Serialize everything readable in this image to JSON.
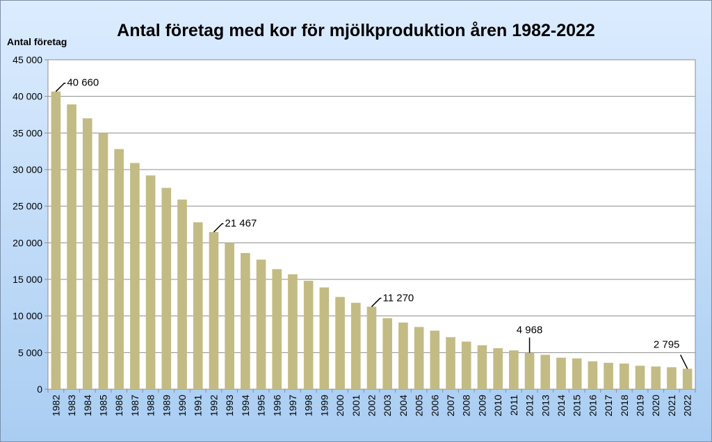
{
  "chart_data": {
    "type": "bar",
    "title": "Antal företag med kor för mjölkproduktion åren 1982-2022",
    "ylabel": "Antal företag",
    "xlabel": "",
    "ylim": [
      0,
      45000
    ],
    "yticks": [
      "0",
      "5 000",
      "10 000",
      "15 000",
      "20 000",
      "25 000",
      "30 000",
      "35 000",
      "40 000",
      "45 000"
    ],
    "grid": true,
    "bar_color": "#c3bb84",
    "categories": [
      "1982",
      "1983",
      "1984",
      "1985",
      "1986",
      "1987",
      "1988",
      "1989",
      "1990",
      "1991",
      "1992",
      "1993",
      "1994",
      "1995",
      "1996",
      "1997",
      "1998",
      "1999",
      "2000",
      "2001",
      "2002",
      "2003",
      "2004",
      "2005",
      "2006",
      "2007",
      "2008",
      "2009",
      "2010",
      "2011",
      "2012",
      "2013",
      "2014",
      "2015",
      "2016",
      "2017",
      "2018",
      "2019",
      "2020",
      "2021",
      "2022"
    ],
    "values": [
      40660,
      38900,
      37000,
      35000,
      32800,
      30900,
      29200,
      27500,
      25900,
      22800,
      21467,
      20000,
      18600,
      17700,
      16400,
      15700,
      14800,
      13900,
      12600,
      11800,
      11270,
      9700,
      9100,
      8500,
      8000,
      7100,
      6500,
      6000,
      5600,
      5300,
      4968,
      4700,
      4300,
      4200,
      3800,
      3600,
      3500,
      3200,
      3100,
      3000,
      2795
    ],
    "annotations": [
      {
        "category": "1982",
        "label": "40 660"
      },
      {
        "category": "1992",
        "label": "21 467"
      },
      {
        "category": "2002",
        "label": "11 270"
      },
      {
        "category": "2012",
        "label": "4 968"
      },
      {
        "category": "2022",
        "label": "2 795"
      }
    ]
  }
}
